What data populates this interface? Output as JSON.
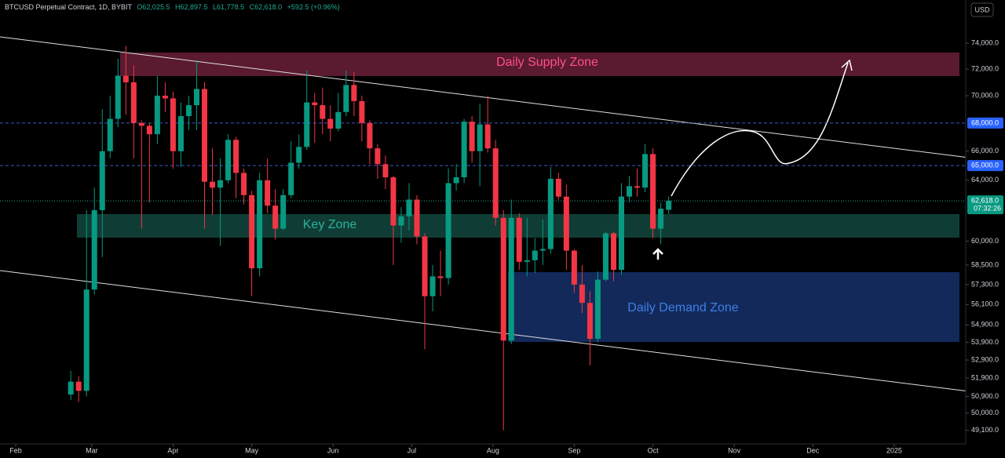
{
  "chart_data": {
    "type": "candlestick",
    "symbol": "BTCUSD Perpetual Contract, 1D, BYBIT",
    "ohlc_labels": [
      "O62,025.5",
      "H62,897.5",
      "L61,778.5",
      "C62,618.0",
      "+592.5 (+0.96%)"
    ],
    "currency": "USD",
    "log_scale": true,
    "up_color": "#089981",
    "down_color": "#f23645",
    "annotations": [
      "Daily Supply Zone",
      "Key Zone",
      "Daily Demand Zone"
    ],
    "xlim": [
      25,
      392.7
    ],
    "xticks": [
      {
        "value": 31,
        "label": "Feb"
      },
      {
        "value": 60,
        "label": "Mar"
      },
      {
        "value": 91,
        "label": "Apr"
      },
      {
        "value": 121,
        "label": "May"
      },
      {
        "value": 152,
        "label": "Jun"
      },
      {
        "value": 182,
        "label": "Jul"
      },
      {
        "value": 213,
        "label": "Aug"
      },
      {
        "value": 244,
        "label": "Sep"
      },
      {
        "value": 274,
        "label": "Oct"
      },
      {
        "value": 305,
        "label": "Nov"
      },
      {
        "value": 335,
        "label": "Dec"
      },
      {
        "value": 366,
        "label": "2025"
      }
    ],
    "ylim": [
      48400,
      77470
    ],
    "yticks": [
      {
        "value": 74000,
        "label": "74,000.0"
      },
      {
        "value": 72000,
        "label": "72,000.0"
      },
      {
        "value": 70000,
        "label": "70,000.0"
      },
      {
        "value": 66000,
        "label": "66,000.0"
      },
      {
        "value": 64000,
        "label": "64,000.0"
      },
      {
        "value": 60000,
        "label": "60,000.0"
      },
      {
        "value": 58500,
        "label": "58,500.0"
      },
      {
        "value": 57300,
        "label": "57,300.0"
      },
      {
        "value": 56100,
        "label": "56,100.0"
      },
      {
        "value": 54900,
        "label": "54,900.0"
      },
      {
        "value": 53900,
        "label": "53,900.0"
      },
      {
        "value": 52900,
        "label": "52,900.0"
      },
      {
        "value": 51900,
        "label": "51,900.0"
      },
      {
        "value": 50900,
        "label": "50,900.0"
      },
      {
        "value": 50000,
        "label": "50,000.0"
      },
      {
        "value": 49100,
        "label": "49,100.0"
      }
    ],
    "hlines": [
      {
        "value": 68000,
        "label": "68,000.0"
      },
      {
        "value": 65000,
        "label": "65,000.0"
      }
    ],
    "price_line": {
      "value": 62618,
      "label": "62,618.0",
      "countdown": "07:32:26"
    },
    "x": [
      52,
      55,
      58,
      61,
      64,
      67,
      70,
      73,
      76,
      79,
      82,
      85,
      88,
      91,
      94,
      97,
      100,
      103,
      106,
      109,
      112,
      115,
      118,
      121,
      124,
      127,
      130,
      133,
      136,
      139,
      142,
      145,
      148,
      151,
      154,
      157,
      160,
      163,
      166,
      169,
      172,
      175,
      178,
      181,
      184,
      187,
      190,
      193,
      196,
      199,
      202,
      205,
      208,
      211,
      214,
      217,
      220,
      223,
      226,
      229,
      232,
      235,
      238,
      241,
      244,
      247,
      250,
      253,
      256,
      259,
      262,
      265,
      268,
      271,
      274,
      277,
      280
    ],
    "open": [
      51000,
      51700,
      51200,
      57000,
      62000,
      66000,
      68300,
      71500,
      71000,
      68000,
      67800,
      67200,
      70000,
      69800,
      66000,
      68500,
      69300,
      70500,
      63900,
      63500,
      64000,
      66800,
      64500,
      63000,
      58300,
      64000,
      62300,
      60800,
      63000,
      65200,
      66300,
      69500,
      69300,
      68300,
      67600,
      68800,
      70800,
      69600,
      68000,
      66200,
      65100,
      64200,
      61000,
      61600,
      62700,
      60300,
      56600,
      57800,
      57700,
      63800,
      64200,
      68100,
      66000,
      67900,
      66200,
      61500,
      54000,
      61500,
      58700,
      58800,
      59400,
      59500,
      64100,
      62900,
      59400,
      57300,
      56200,
      54100,
      57600,
      60500,
      58200,
      62900,
      63600,
      63500,
      65800,
      60800,
      62025.5
    ],
    "high": [
      52300,
      52000,
      62000,
      63500,
      69000,
      70000,
      72800,
      73800,
      72300,
      68200,
      68000,
      71500,
      71000,
      70300,
      69500,
      70000,
      72700,
      71000,
      66200,
      65500,
      67200,
      67000,
      64800,
      63300,
      64500,
      65500,
      63400,
      63400,
      66700,
      67200,
      71900,
      70200,
      70600,
      69300,
      70200,
      71900,
      71800,
      70000,
      68200,
      66500,
      65700,
      64300,
      62200,
      63800,
      63000,
      60500,
      58500,
      59400,
      64800,
      65100,
      68300,
      68500,
      69400,
      70000,
      66800,
      62000,
      62700,
      61800,
      61500,
      60200,
      61400,
      64900,
      64500,
      63700,
      59500,
      58500,
      56900,
      58100,
      60600,
      60600,
      63800,
      64300,
      64800,
      66500,
      66200,
      62500,
      62897.5
    ],
    "low": [
      50700,
      50600,
      50900,
      56700,
      59000,
      65500,
      67700,
      68600,
      65500,
      60800,
      62500,
      66500,
      68800,
      64800,
      64900,
      67500,
      67500,
      60800,
      61700,
      59700,
      63800,
      62800,
      62400,
      56600,
      57800,
      61800,
      60100,
      60700,
      62800,
      64800,
      66100,
      66600,
      67200,
      66700,
      67400,
      68500,
      68500,
      66700,
      65100,
      64100,
      63400,
      58500,
      59900,
      60700,
      59800,
      53500,
      55700,
      56600,
      57300,
      63300,
      63800,
      65200,
      63600,
      65900,
      61000,
      49100,
      53800,
      58200,
      57800,
      58000,
      58500,
      59200,
      62700,
      58200,
      56800,
      55600,
      52600,
      53900,
      57500,
      57500,
      57900,
      62500,
      62900,
      63200,
      60200,
      59800,
      61778.5
    ],
    "close": [
      51700,
      51200,
      57000,
      62000,
      66000,
      68300,
      71500,
      71000,
      68000,
      67800,
      67200,
      70000,
      69800,
      66000,
      68500,
      69300,
      70500,
      63900,
      63500,
      64000,
      66800,
      64500,
      63000,
      58300,
      64000,
      62300,
      60800,
      63000,
      65200,
      66300,
      69500,
      69300,
      68300,
      67600,
      68800,
      70800,
      69600,
      68000,
      66200,
      65100,
      64200,
      61000,
      61600,
      62700,
      60300,
      56600,
      57800,
      57700,
      63800,
      64200,
      68100,
      66000,
      67900,
      66200,
      61500,
      54000,
      61500,
      58700,
      58800,
      59400,
      59500,
      64100,
      62900,
      59400,
      57300,
      56200,
      54100,
      57600,
      60500,
      58200,
      62900,
      63600,
      63500,
      65800,
      60800,
      62100,
      62618
    ]
  }
}
